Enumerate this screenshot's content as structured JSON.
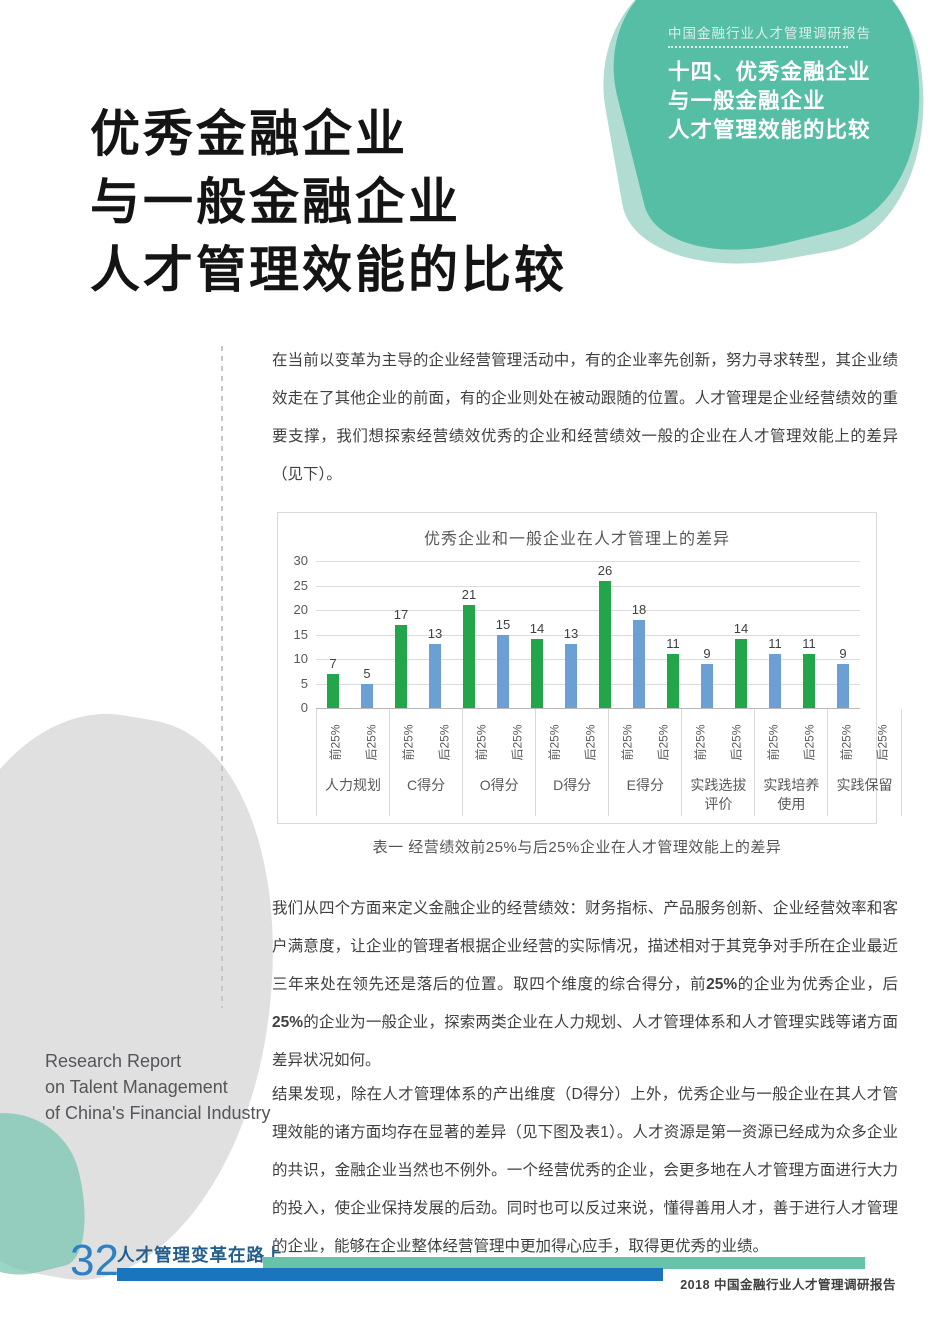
{
  "page": {
    "badge": {
      "kicker": "中国金融行业人才管理调研报告",
      "title_lines": [
        "十四、优秀金融企业",
        "与一般金融企业",
        "人才管理效能的比较"
      ]
    },
    "main_title_lines": [
      "优秀金融企业",
      "与一般金融企业",
      "人才管理效能的比较"
    ],
    "paragraphs": {
      "p1": "在当前以变革为主导的企业经营管理活动中，有的企业率先创新，努力寻求转型，其企业绩效走在了其他企业的前面，有的企业则处在被动跟随的位置。人才管理是企业经营绩效的重要支撑，我们想探索经营绩效优秀的企业和经营绩效一般的企业在人才管理效能上的差异（见下）。",
      "p2_runs": [
        {
          "text": "我们从四个方面来定义金融企业的经营绩效：财务指标、产品服务创新、企业经营效率和客户满意度，让企业的管理者根据企业经营的实际情况，描述相对于其竞争对手所在企业最近三年来处在领先还是落后的位置。取四个维度的综合得分，前",
          "bold": false
        },
        {
          "text": "25%",
          "bold": true
        },
        {
          "text": "的企业为优秀企业，后",
          "bold": false
        },
        {
          "text": "25%",
          "bold": true
        },
        {
          "text": "的企业为一般企业，探索两类企业在人力规划、人才管理体系和人才管理实践等诸方面差异状况如何。",
          "bold": false
        }
      ],
      "p3": "结果发现，除在人才管理体系的产出维度（D得分）上外，优秀企业与一般企业在其人才管理效能的诸方面均存在显著的差异（见下图及表1）。人才资源是第一资源已经成为众多企业的共识，金融企业当然也不例外。一个经营优秀的企业，会更多地在人才管理方面进行大力的投入，使企业保持发展的后劲。同时也可以反过来说，懂得善用人才，善于进行人才管理的企业，能够在企业整体经营管理中更加得心应手，取得更优秀的业绩。"
    },
    "chart_caption": "表一  经营绩效前25%与后25%企业在人才管理效能上的差异",
    "side_label_lines": [
      "Research Report",
      "on Talent Management",
      "of  China's Financial Industry"
    ],
    "footer": {
      "page_number": "32",
      "slogan": "人才管理变革在路上",
      "report_title": "2018 中国金融行业人才管理调研报告"
    }
  },
  "chart_data": {
    "type": "bar",
    "title": "优秀企业和一般企业在人才管理上的差异",
    "categories": [
      "人力规划",
      "C得分",
      "O得分",
      "D得分",
      "E得分",
      "实践选拔评价",
      "实践培养使用",
      "实践保留"
    ],
    "category_display": [
      [
        "人力规划"
      ],
      [
        "C得分"
      ],
      [
        "O得分"
      ],
      [
        "D得分"
      ],
      [
        "E得分"
      ],
      [
        "实践选拔",
        "评价"
      ],
      [
        "实践培养",
        "使用"
      ],
      [
        "实践保留"
      ]
    ],
    "bar_axis_labels": [
      "前25%",
      "后25%"
    ],
    "series": [
      {
        "name": "前25%",
        "color": "#22A54B",
        "values": [
          7,
          17,
          21,
          14,
          26,
          11,
          14,
          11
        ]
      },
      {
        "name": "后25%",
        "color": "#6C9FD4",
        "values": [
          5,
          13,
          15,
          13,
          18,
          9,
          11,
          9
        ]
      }
    ],
    "ylim": [
      0,
      30
    ],
    "yticks": [
      0,
      5,
      10,
      15,
      20,
      25,
      30
    ],
    "grid": true,
    "legend": "none",
    "xlabel": "",
    "ylabel": ""
  },
  "colors": {
    "teal_main": "#57BEA6",
    "teal_light": "#B0DCD2",
    "gray_blob": "#E0E0E0",
    "green_bar": "#22A54B",
    "blue_bar": "#6C9FD4",
    "footer_teal": "#66C3A9",
    "footer_blue": "#1B75BC",
    "page_number_blue": "#2E80C4",
    "slogan_blue": "#245E8C",
    "body_text": "#404040",
    "axis_text": "#595959"
  }
}
